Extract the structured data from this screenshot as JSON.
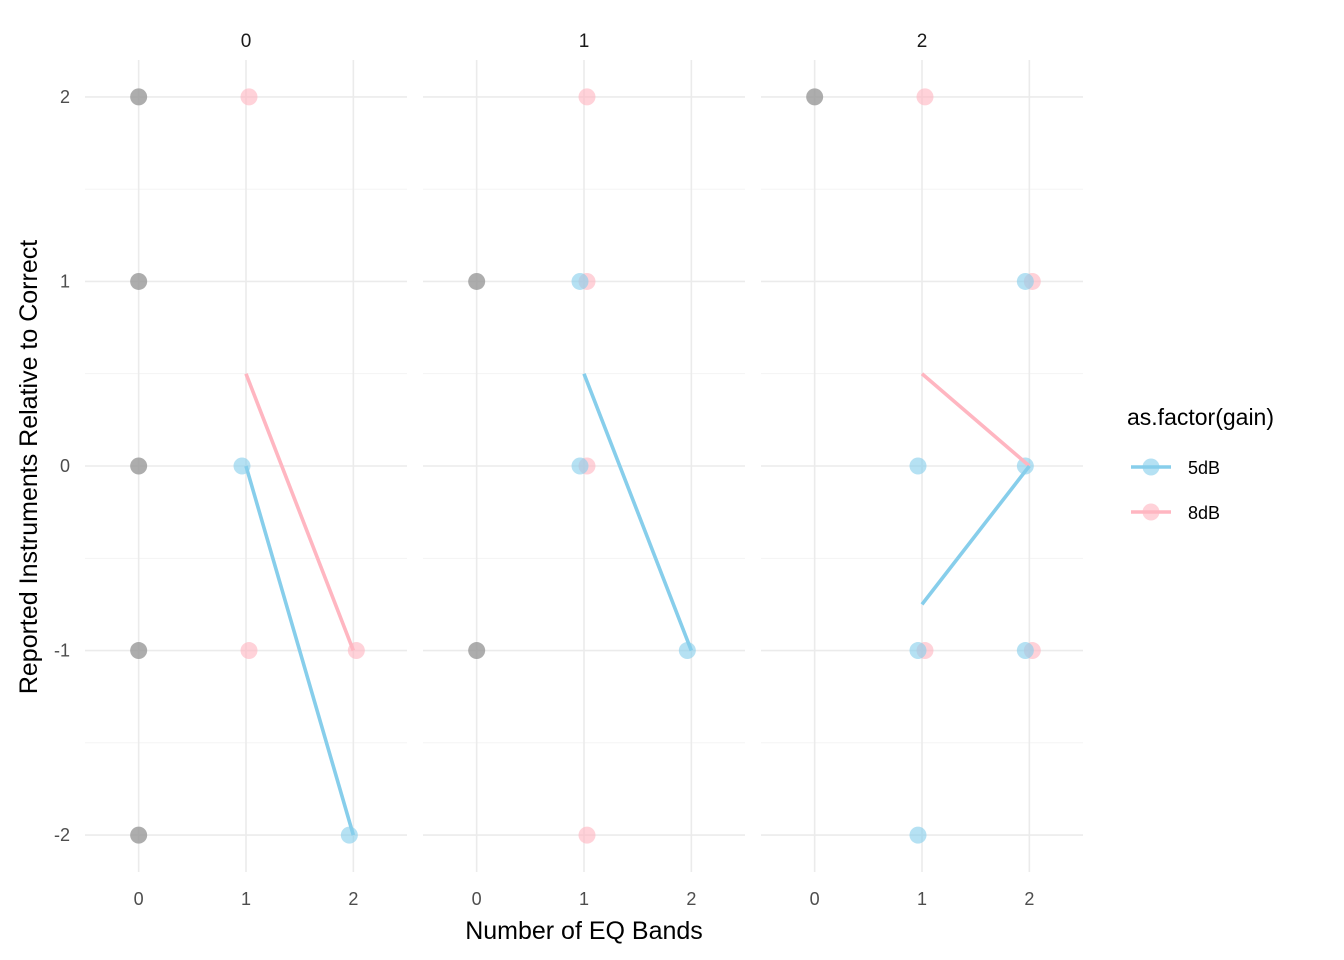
{
  "chart_data": {
    "type": "scatter",
    "title": "",
    "xlabel": "Number of EQ Bands",
    "ylabel": "Reported Instruments Relative to Correct",
    "xlim": [
      -0.5,
      2.5
    ],
    "ylim": [
      -2.2,
      2.2
    ],
    "x_ticks": [
      "0",
      "1",
      "2"
    ],
    "y_ticks": [
      "-2",
      "-1",
      "0",
      "1",
      "2"
    ],
    "grid": true,
    "legend": {
      "title": "as.factor(gain)",
      "position": "right",
      "entries": [
        {
          "label": "5dB",
          "color": "#87ceeb"
        },
        {
          "label": "8dB",
          "color": "#ffb6c1"
        }
      ]
    },
    "neutral_color": "#999999",
    "facets": [
      {
        "label": "0",
        "points": [
          {
            "x": 0,
            "y": 2,
            "group": "none"
          },
          {
            "x": 0,
            "y": 1,
            "group": "none"
          },
          {
            "x": 0,
            "y": 0,
            "group": "none"
          },
          {
            "x": 0,
            "y": -1,
            "group": "none"
          },
          {
            "x": 0,
            "y": -2,
            "group": "none"
          },
          {
            "x": 1,
            "y": 2,
            "group": "8dB"
          },
          {
            "x": 1,
            "y": -1,
            "group": "8dB"
          },
          {
            "x": 2,
            "y": -1,
            "group": "8dB"
          },
          {
            "x": 1,
            "y": 0,
            "group": "5dB"
          },
          {
            "x": 2,
            "y": -2,
            "group": "5dB"
          }
        ],
        "lines": [
          {
            "group": "8dB",
            "x": [
              1,
              2
            ],
            "y": [
              0.5,
              -1
            ]
          },
          {
            "group": "5dB",
            "x": [
              1,
              2
            ],
            "y": [
              0,
              -2
            ]
          }
        ]
      },
      {
        "label": "1",
        "points": [
          {
            "x": 0,
            "y": 1,
            "group": "none"
          },
          {
            "x": 0,
            "y": -1,
            "group": "none"
          },
          {
            "x": 1,
            "y": 2,
            "group": "8dB"
          },
          {
            "x": 1,
            "y": 1,
            "group": "8dB"
          },
          {
            "x": 1,
            "y": 0,
            "group": "8dB"
          },
          {
            "x": 1,
            "y": -2,
            "group": "8dB"
          },
          {
            "x": 1,
            "y": 1,
            "group": "5dB"
          },
          {
            "x": 1,
            "y": 0,
            "group": "5dB"
          },
          {
            "x": 2,
            "y": -1,
            "group": "5dB"
          }
        ],
        "lines": [
          {
            "group": "5dB",
            "x": [
              1,
              2
            ],
            "y": [
              0.5,
              -1
            ]
          }
        ]
      },
      {
        "label": "2",
        "points": [
          {
            "x": 0,
            "y": 2,
            "group": "none"
          },
          {
            "x": 1,
            "y": 2,
            "group": "8dB"
          },
          {
            "x": 1,
            "y": -1,
            "group": "8dB"
          },
          {
            "x": 2,
            "y": 1,
            "group": "8dB"
          },
          {
            "x": 2,
            "y": -1,
            "group": "8dB"
          },
          {
            "x": 1,
            "y": 0,
            "group": "5dB"
          },
          {
            "x": 1,
            "y": -1,
            "group": "5dB"
          },
          {
            "x": 1,
            "y": -2,
            "group": "5dB"
          },
          {
            "x": 2,
            "y": 1,
            "group": "5dB"
          },
          {
            "x": 2,
            "y": 0,
            "group": "5dB"
          },
          {
            "x": 2,
            "y": -1,
            "group": "5dB"
          }
        ],
        "lines": [
          {
            "group": "8dB",
            "x": [
              1,
              2
            ],
            "y": [
              0.5,
              0
            ]
          },
          {
            "group": "5dB",
            "x": [
              1,
              2
            ],
            "y": [
              -0.75,
              0
            ]
          }
        ]
      }
    ]
  }
}
